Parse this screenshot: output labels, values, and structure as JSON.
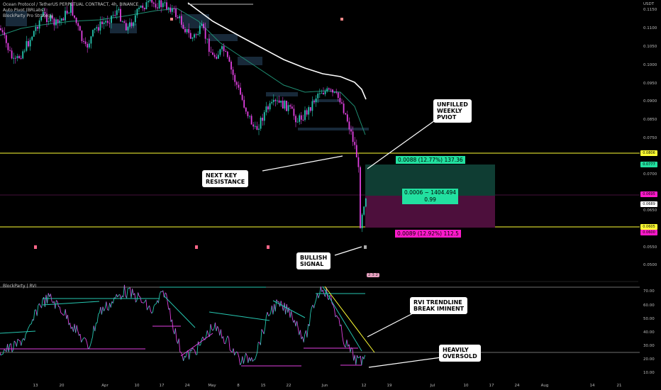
{
  "header": {
    "title": "Ocean Protocol / TetherUS PERPETUAL CONTRACT, 4h, BINANCE",
    "indicator1": "Auto Pivot (BRLabs)",
    "indicator2": "BlockParty Pro Strategy",
    "currency": "USDT"
  },
  "rvi_pane": {
    "title": "BlockParty | RVI",
    "axis_ticks": [
      "70.00",
      "60.00",
      "50.00",
      "40.00",
      "30.00",
      "20.00",
      "10.00"
    ]
  },
  "price_axis": {
    "ticks": [
      "0.1150",
      "0.1100",
      "0.1050",
      "0.1000",
      "0.0950",
      "0.0900",
      "0.0850",
      "0.0750",
      "0.0700",
      "0.0650",
      "0.0550",
      "0.0500"
    ],
    "labels": {
      "resistance": "0.0806",
      "target": "0.0777",
      "current": "0.0695",
      "entry": "0.0689",
      "support": "0.0605",
      "stop": "0.0600"
    }
  },
  "date_axis": [
    "13",
    "20",
    "Apr",
    "10",
    "17",
    "24",
    "May",
    "8",
    "15",
    "22",
    "Jun",
    "12",
    "19",
    "Jul",
    "10",
    "17",
    "24",
    "Aug",
    "14",
    "21"
  ],
  "position_tool": {
    "target_label": "0.0088 (12.77%) 137.36",
    "center_label_1": "0.0006 ~ 1404.494",
    "center_label_2": "0.99",
    "stop_label": "0.0089 (12.92%) 112.5"
  },
  "callouts": {
    "unfilled_pivot": "UNFILLED\nWEEKLY\nPVIOT",
    "key_resistance": "NEXT KEY\nRESISTANCE",
    "bullish_signal": "BULLISH\nSIGNAL",
    "rvi_trendline": "RVI TRENDLINE\nBREAK IMINENT",
    "oversold": "HEAVILY\nOVERSOLD"
  },
  "badge": "2 3 2",
  "colors": {
    "up": "#26c6b0",
    "down": "#e040e0",
    "support_line": "#ffff33",
    "target_zone": "#0f3d33",
    "stop_zone": "#4d0f3c",
    "target_label_bg": "#22e0a0",
    "stop_label_bg": "#ff1aca"
  }
}
